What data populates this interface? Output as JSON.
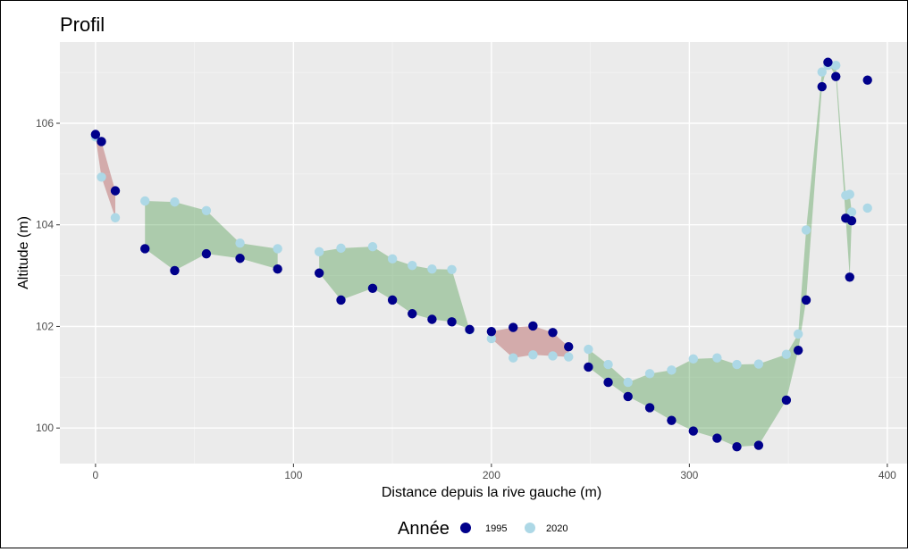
{
  "chart_data": {
    "type": "scatter",
    "title": "Profil",
    "xlabel": "Distance depuis la rive gauche (m)",
    "ylabel": "Altitude (m)",
    "xlim": [
      -18,
      410
    ],
    "ylim": [
      99.3,
      107.6
    ],
    "x_ticks": [
      0,
      100,
      200,
      300,
      400
    ],
    "y_ticks": [
      100,
      102,
      104,
      106
    ],
    "x_tick_labels": [
      "0",
      "100",
      "200",
      "300",
      "400"
    ],
    "y_tick_labels": [
      "100",
      "102",
      "104",
      "106"
    ],
    "grid": true,
    "legend": {
      "title": "Année",
      "position": "bottom",
      "entries": [
        "1995",
        "2020"
      ]
    },
    "colors": {
      "panel": "#ebebeb",
      "grid_major": "#ffffff",
      "grid_minor": "#f4f4f4",
      "series_1995": "#00008b",
      "series_2020": "#add8e6",
      "fill_gain": "#2e8b2e",
      "fill_loss": "#a52a2a"
    },
    "series": [
      {
        "name": "1995",
        "color": "#00008b",
        "points": [
          [
            0,
            105.78
          ],
          [
            3,
            105.64
          ],
          [
            10,
            104.67
          ],
          [
            25,
            103.53
          ],
          [
            40,
            103.1
          ],
          [
            56,
            103.43
          ],
          [
            73,
            103.34
          ],
          [
            92,
            103.13
          ],
          [
            113,
            103.05
          ],
          [
            124,
            102.52
          ],
          [
            140,
            102.75
          ],
          [
            150,
            102.52
          ],
          [
            160,
            102.25
          ],
          [
            170,
            102.14
          ],
          [
            180,
            102.09
          ],
          [
            189,
            101.94
          ],
          [
            200,
            101.9
          ],
          [
            211,
            101.98
          ],
          [
            221,
            102.01
          ],
          [
            231,
            101.88
          ],
          [
            239,
            101.6
          ],
          [
            249,
            101.2
          ],
          [
            259,
            100.9
          ],
          [
            269,
            100.62
          ],
          [
            280,
            100.4
          ],
          [
            291,
            100.15
          ],
          [
            302,
            99.94
          ],
          [
            314,
            99.8
          ],
          [
            324,
            99.63
          ],
          [
            335,
            99.66
          ],
          [
            349,
            100.55
          ],
          [
            355,
            101.53
          ],
          [
            359,
            102.52
          ],
          [
            367,
            106.72
          ],
          [
            370,
            107.2
          ],
          [
            374,
            106.92
          ],
          [
            379,
            104.13
          ],
          [
            381,
            102.97
          ],
          [
            382,
            104.08
          ],
          [
            390,
            106.85
          ]
        ]
      },
      {
        "name": "2020",
        "color": "#add8e6",
        "points": [
          [
            0,
            105.73
          ],
          [
            3,
            104.94
          ],
          [
            10,
            104.14
          ],
          [
            25,
            104.47
          ],
          [
            40,
            104.45
          ],
          [
            56,
            104.28
          ],
          [
            73,
            103.64
          ],
          [
            92,
            103.53
          ],
          [
            113,
            103.47
          ],
          [
            124,
            103.54
          ],
          [
            140,
            103.57
          ],
          [
            150,
            103.33
          ],
          [
            160,
            103.2
          ],
          [
            170,
            103.13
          ],
          [
            180,
            103.12
          ],
          [
            189,
            101.93
          ],
          [
            200,
            101.76
          ],
          [
            211,
            101.38
          ],
          [
            221,
            101.44
          ],
          [
            231,
            101.42
          ],
          [
            239,
            101.4
          ],
          [
            249,
            101.55
          ],
          [
            259,
            101.25
          ],
          [
            269,
            100.9
          ],
          [
            280,
            101.07
          ],
          [
            291,
            101.14
          ],
          [
            302,
            101.36
          ],
          [
            314,
            101.38
          ],
          [
            324,
            101.25
          ],
          [
            335,
            101.26
          ],
          [
            349,
            101.45
          ],
          [
            355,
            101.85
          ],
          [
            359,
            103.9
          ],
          [
            367,
            107.01
          ],
          [
            370,
            107.14
          ],
          [
            374,
            107.14
          ],
          [
            379,
            104.58
          ],
          [
            381,
            104.6
          ],
          [
            382,
            104.25
          ],
          [
            390,
            104.33
          ]
        ]
      }
    ],
    "difference_ribbons": [
      {
        "type": "loss",
        "x_range": [
          0,
          10
        ]
      },
      {
        "type": "gain",
        "x_range": [
          25,
          92
        ]
      },
      {
        "type": "gain",
        "x_range": [
          113,
          189
        ]
      },
      {
        "type": "loss",
        "x_range": [
          200,
          239
        ]
      },
      {
        "type": "gain",
        "x_range": [
          249,
          382
        ]
      }
    ]
  }
}
